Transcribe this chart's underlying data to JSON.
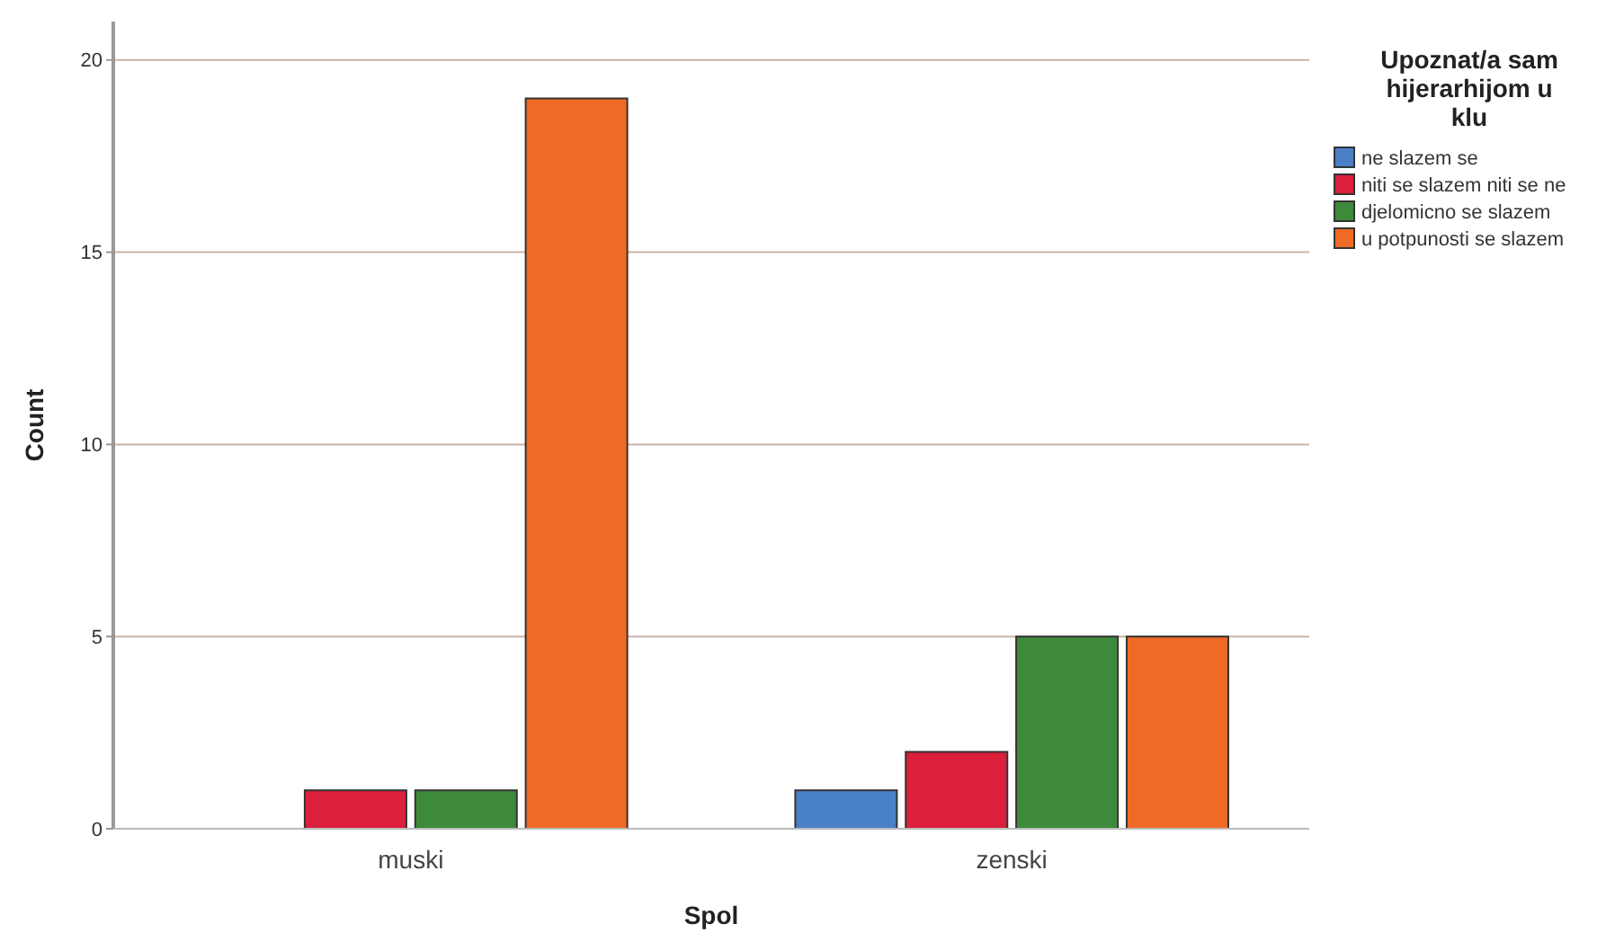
{
  "chart_data": {
    "type": "bar",
    "xlabel": "Spol",
    "ylabel": "Count",
    "categories": [
      "muski",
      "zenski"
    ],
    "legend_title": "Upoznat/a sam hijerarhijom u klu",
    "series": [
      {
        "name": "ne slazem se",
        "color": "#4a80c6",
        "values": [
          null,
          1
        ]
      },
      {
        "name": "niti se slazem niti se ne",
        "color": "#dc1f3a",
        "values": [
          1,
          2
        ]
      },
      {
        "name": "djelomicno se slazem",
        "color": "#3e8a3b",
        "values": [
          1,
          5
        ]
      },
      {
        "name": "u potpunosti se slazem",
        "color": "#ef6a24",
        "values": [
          19,
          5
        ]
      }
    ],
    "ylim": [
      0,
      21
    ],
    "yticks": [
      0,
      5,
      10,
      15,
      20
    ],
    "grid": "y",
    "legend": "top right"
  }
}
